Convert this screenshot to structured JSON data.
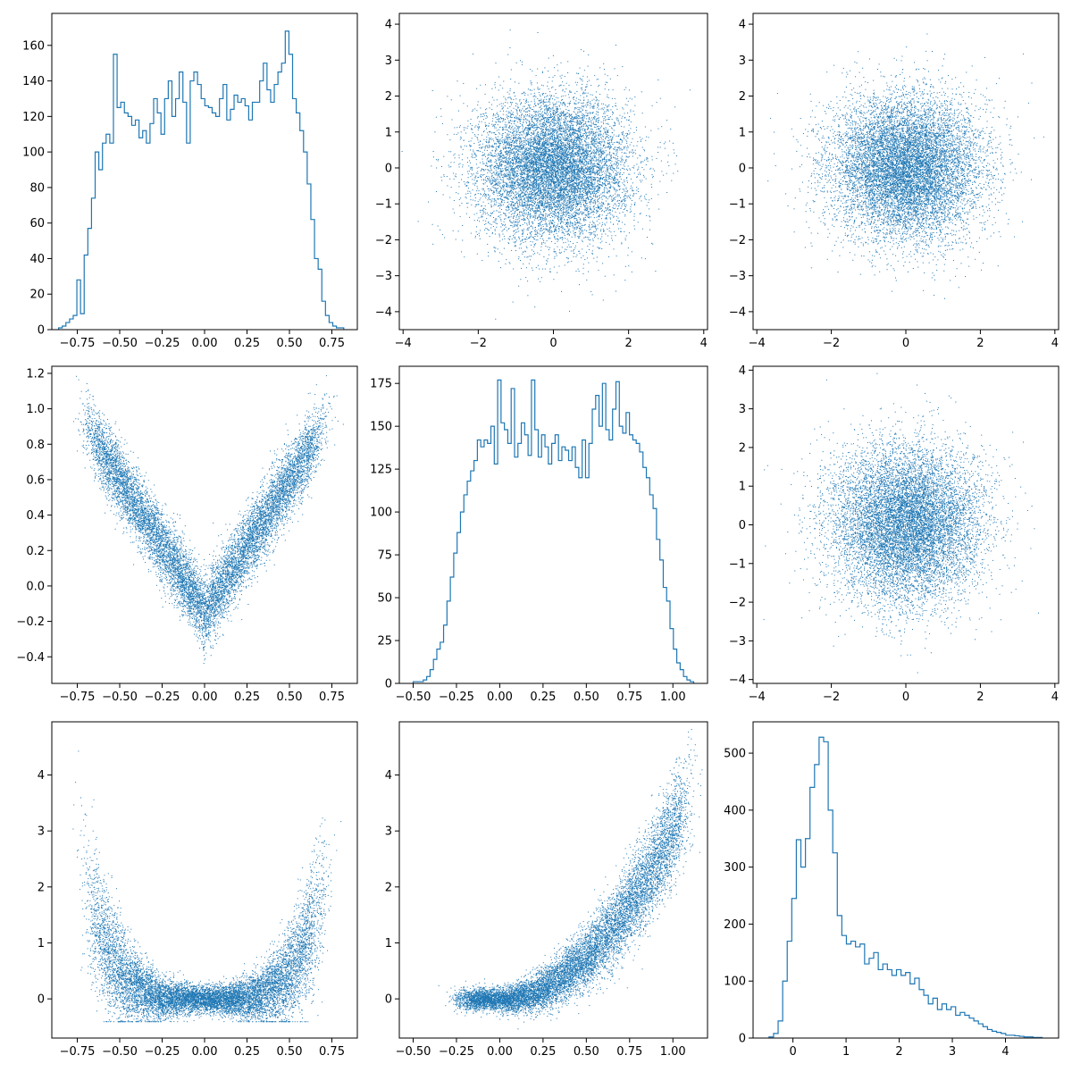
{
  "chart_data": [
    {
      "type": "histogram",
      "panel": "row1-col1",
      "xlim": [
        -0.9,
        0.9
      ],
      "ylim": [
        0,
        178
      ],
      "xticks": [
        -0.75,
        -0.5,
        -0.25,
        0.0,
        0.25,
        0.5,
        0.75
      ],
      "xtick_labels": [
        "−0.75",
        "−0.50",
        "−0.25",
        "0.00",
        "0.25",
        "0.50",
        "0.75"
      ],
      "yticks": [
        0,
        20,
        40,
        60,
        80,
        100,
        120,
        140,
        160
      ],
      "ytick_labels": [
        "0",
        "20",
        "40",
        "60",
        "80",
        "100",
        "120",
        "140",
        "160"
      ],
      "bin_start": -0.86,
      "bin_end": 0.82,
      "counts": [
        1,
        2,
        4,
        6,
        8,
        28,
        9,
        42,
        57,
        74,
        100,
        90,
        105,
        110,
        105,
        155,
        125,
        128,
        122,
        120,
        115,
        118,
        108,
        112,
        105,
        116,
        130,
        122,
        110,
        130,
        140,
        120,
        130,
        145,
        128,
        105,
        140,
        145,
        138,
        130,
        126,
        125,
        122,
        120,
        130,
        138,
        118,
        124,
        132,
        128,
        130,
        126,
        118,
        128,
        128,
        140,
        150,
        135,
        128,
        138,
        145,
        150,
        168,
        155,
        130,
        122,
        112,
        100,
        82,
        62,
        40,
        34,
        16,
        8,
        4,
        2,
        1,
        1
      ]
    },
    {
      "type": "scatter",
      "panel": "row1-col2",
      "xlim": [
        -4.1,
        4.1
      ],
      "ylim": [
        -4.5,
        4.3
      ],
      "xticks": [
        -4,
        -2,
        0,
        2,
        4
      ],
      "xtick_labels": [
        "−4",
        "−2",
        "0",
        "2",
        "4"
      ],
      "yticks": [
        -4,
        -3,
        -2,
        -1,
        0,
        1,
        2,
        3,
        4
      ],
      "ytick_labels": [
        "−4",
        "−3",
        "−2",
        "−1",
        "0",
        "1",
        "2",
        "3",
        "4"
      ],
      "distribution": "bivariate standard normal, independent",
      "n_points": 10000
    },
    {
      "type": "scatter",
      "panel": "row1-col3",
      "xlim": [
        -4.1,
        4.1
      ],
      "ylim": [
        -4.5,
        4.3
      ],
      "xticks": [
        -4,
        -2,
        0,
        2,
        4
      ],
      "xtick_labels": [
        "−4",
        "−2",
        "0",
        "2",
        "4"
      ],
      "yticks": [
        -4,
        -3,
        -2,
        -1,
        0,
        1,
        2,
        3,
        4
      ],
      "ytick_labels": [
        "−4",
        "−3",
        "−2",
        "−1",
        "0",
        "1",
        "2",
        "3",
        "4"
      ],
      "distribution": "bivariate standard normal, independent",
      "n_points": 10000
    },
    {
      "type": "scatter",
      "panel": "row2-col1",
      "xlim": [
        -0.9,
        0.9
      ],
      "ylim": [
        -0.55,
        1.24
      ],
      "xticks": [
        -0.75,
        -0.5,
        -0.25,
        0.0,
        0.25,
        0.5,
        0.75
      ],
      "xtick_labels": [
        "−0.75",
        "−0.50",
        "−0.25",
        "0.00",
        "0.25",
        "0.50",
        "0.75"
      ],
      "yticks": [
        -0.4,
        -0.2,
        0.0,
        0.2,
        0.4,
        0.6,
        0.8,
        1.0,
        1.2
      ],
      "ytick_labels": [
        "−0.4",
        "−0.2",
        "0.0",
        "0.2",
        "0.4",
        "0.6",
        "0.8",
        "1.0",
        "1.2"
      ],
      "distribution": "V-shaped band: y ≈ 1.5·|x| − 0.15 with spread ±0.2",
      "n_points": 10000
    },
    {
      "type": "histogram",
      "panel": "row2-col2",
      "xlim": [
        -0.58,
        1.2
      ],
      "ylim": [
        0,
        185
      ],
      "xticks": [
        -0.5,
        -0.25,
        0.0,
        0.25,
        0.5,
        0.75,
        1.0
      ],
      "xtick_labels": [
        "−0.50",
        "−0.25",
        "0.00",
        "0.25",
        "0.50",
        "0.75",
        "1.00"
      ],
      "yticks": [
        0,
        25,
        50,
        75,
        100,
        125,
        150,
        175
      ],
      "ytick_labels": [
        "0",
        "25",
        "50",
        "75",
        "100",
        "125",
        "150",
        "175"
      ],
      "bin_start": -0.5,
      "bin_end": 1.12,
      "counts": [
        1,
        1,
        1,
        2,
        4,
        8,
        14,
        20,
        24,
        34,
        48,
        62,
        76,
        88,
        100,
        110,
        118,
        124,
        130,
        142,
        138,
        142,
        140,
        150,
        128,
        177,
        152,
        148,
        140,
        172,
        132,
        140,
        152,
        145,
        133,
        177,
        148,
        132,
        145,
        138,
        128,
        140,
        145,
        130,
        138,
        136,
        130,
        138,
        126,
        120,
        142,
        120,
        140,
        160,
        168,
        150,
        175,
        148,
        142,
        160,
        176,
        150,
        146,
        158,
        145,
        142,
        140,
        135,
        126,
        120,
        110,
        102,
        84,
        72,
        56,
        48,
        32,
        20,
        12,
        8,
        4,
        2,
        1
      ]
    },
    {
      "type": "scatter",
      "panel": "row2-col3",
      "xlim": [
        -4.1,
        4.1
      ],
      "ylim": [
        -4.1,
        4.1
      ],
      "xticks": [
        -4,
        -2,
        0,
        2,
        4
      ],
      "xtick_labels": [
        "−4",
        "−2",
        "0",
        "2",
        "4"
      ],
      "yticks": [
        -4,
        -3,
        -2,
        -1,
        0,
        1,
        2,
        3,
        4
      ],
      "ytick_labels": [
        "−4",
        "−3",
        "−2",
        "−1",
        "0",
        "1",
        "2",
        "3",
        "4"
      ],
      "distribution": "bivariate standard normal, independent",
      "n_points": 10000
    },
    {
      "type": "scatter",
      "panel": "row3-col1",
      "xlim": [
        -0.9,
        0.9
      ],
      "ylim": [
        -0.7,
        4.95
      ],
      "xticks": [
        -0.75,
        -0.5,
        -0.25,
        0.0,
        0.25,
        0.5,
        0.75
      ],
      "xtick_labels": [
        "−0.75",
        "−0.50",
        "−0.25",
        "0.00",
        "0.25",
        "0.50",
        "0.75"
      ],
      "yticks": [
        0,
        1,
        2,
        3,
        4
      ],
      "ytick_labels": [
        "0",
        "1",
        "2",
        "3",
        "4"
      ],
      "distribution": "U-shaped: y ≈ 8·x^4 + noise, min ≈ 0 near x=0",
      "n_points": 10000
    },
    {
      "type": "scatter",
      "panel": "row3-col2",
      "xlim": [
        -0.58,
        1.2
      ],
      "ylim": [
        -0.7,
        4.95
      ],
      "xticks": [
        -0.5,
        -0.25,
        0.0,
        0.25,
        0.5,
        0.75,
        1.0
      ],
      "xtick_labels": [
        "−0.50",
        "−0.25",
        "0.00",
        "0.25",
        "0.50",
        "0.75",
        "1.00"
      ],
      "yticks": [
        0,
        1,
        2,
        3,
        4
      ],
      "ytick_labels": [
        "0",
        "1",
        "2",
        "3",
        "4"
      ],
      "distribution": "curved: y ≈ 3·x^2 (x ≥ 0), flat near 0 for x < 0",
      "n_points": 10000
    },
    {
      "type": "histogram",
      "panel": "row3-col3",
      "xlim": [
        -0.75,
        5.0
      ],
      "ylim": [
        0,
        555
      ],
      "xticks": [
        0,
        1,
        2,
        3,
        4
      ],
      "xtick_labels": [
        "0",
        "1",
        "2",
        "3",
        "4"
      ],
      "yticks": [
        0,
        100,
        200,
        300,
        400,
        500
      ],
      "ytick_labels": [
        "0",
        "100",
        "200",
        "300",
        "400",
        "500"
      ],
      "bin_start": -0.45,
      "bin_end": 4.69,
      "counts": [
        2,
        8,
        30,
        100,
        170,
        245,
        348,
        300,
        350,
        440,
        480,
        528,
        520,
        400,
        325,
        215,
        180,
        165,
        170,
        160,
        165,
        130,
        140,
        150,
        120,
        130,
        120,
        110,
        120,
        110,
        115,
        95,
        105,
        85,
        75,
        60,
        70,
        50,
        60,
        50,
        55,
        40,
        45,
        40,
        35,
        30,
        25,
        20,
        15,
        12,
        10,
        8,
        5,
        5,
        4,
        3,
        2,
        2,
        1,
        1
      ]
    }
  ],
  "style": {
    "series_color": "#1f77b4",
    "axes_color": "#000000",
    "background": "#ffffff"
  }
}
